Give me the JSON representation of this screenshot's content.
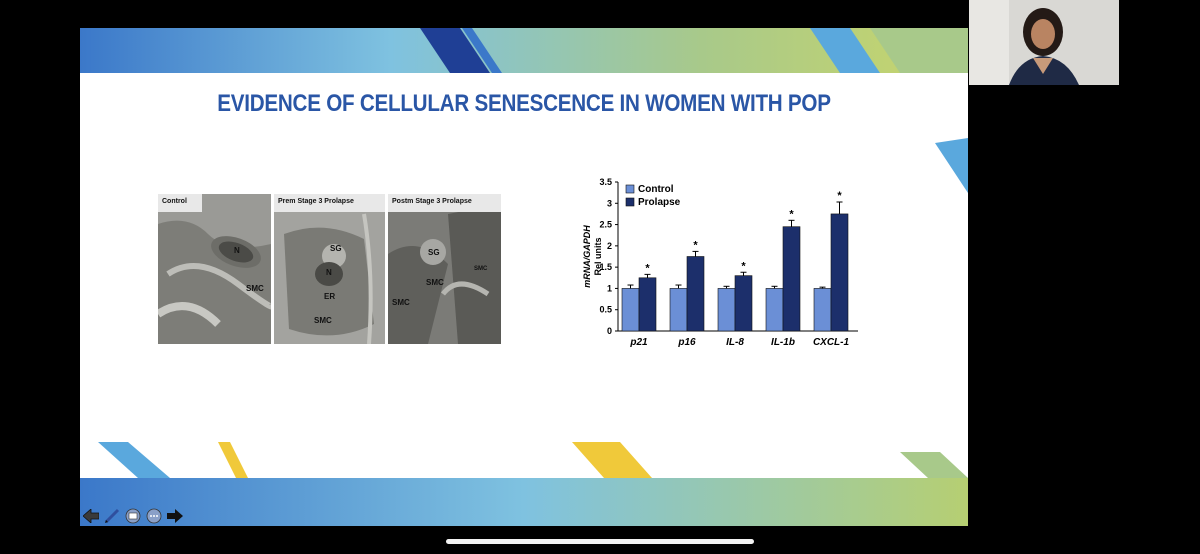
{
  "slide": {
    "title": "EVIDENCE OF CELLULAR SENESCENCE IN WOMEN WITH POP",
    "colors": {
      "title": "#2a56a6",
      "band_blue": "#3b78c9",
      "band_navy": "#1f3f95",
      "band_green": "#a8c98a",
      "band_yellow": "#f0c93a",
      "band_light": "#7fc2e0"
    }
  },
  "micrographs": {
    "panels": [
      {
        "label": "Control",
        "tags": [
          "N",
          "SMC"
        ]
      },
      {
        "label": "Prem Stage 3 Prolapse",
        "tags": [
          "SG",
          "N",
          "ER",
          "SMC"
        ]
      },
      {
        "label": "Postm Stage 3 Prolapse",
        "tags": [
          "SG",
          "SMC",
          "SMC",
          "SMC"
        ]
      }
    ]
  },
  "chart_data": {
    "type": "bar",
    "categories": [
      "p21",
      "p16",
      "IL-8",
      "IL-1b",
      "CXCL-1"
    ],
    "series": [
      {
        "name": "Control",
        "values": [
          1.0,
          1.0,
          1.0,
          1.0,
          1.0
        ],
        "errors": [
          0.08,
          0.08,
          0.05,
          0.05,
          0.03
        ],
        "color": "#6b8fd6"
      },
      {
        "name": "Prolapse",
        "values": [
          1.25,
          1.75,
          1.3,
          2.45,
          2.75
        ],
        "errors": [
          0.08,
          0.12,
          0.08,
          0.15,
          0.28
        ],
        "color": "#1c2f6b"
      }
    ],
    "significance": [
      "*",
      "*",
      "*",
      "*",
      "*"
    ],
    "ylabel_line1": "mRNA/GAPDH",
    "ylabel_line2": "Rel units",
    "ylim": [
      0,
      3.5
    ],
    "yticks": [
      "0",
      "0.5",
      "1",
      "1.5",
      "2",
      "2.5",
      "3",
      "3.5"
    ],
    "legend_position": "top-left",
    "grid": false
  },
  "toolbar": {
    "icons": [
      "back-arrow-icon",
      "pen-icon",
      "slides-icon",
      "more-icon",
      "forward-arrow-icon"
    ]
  }
}
